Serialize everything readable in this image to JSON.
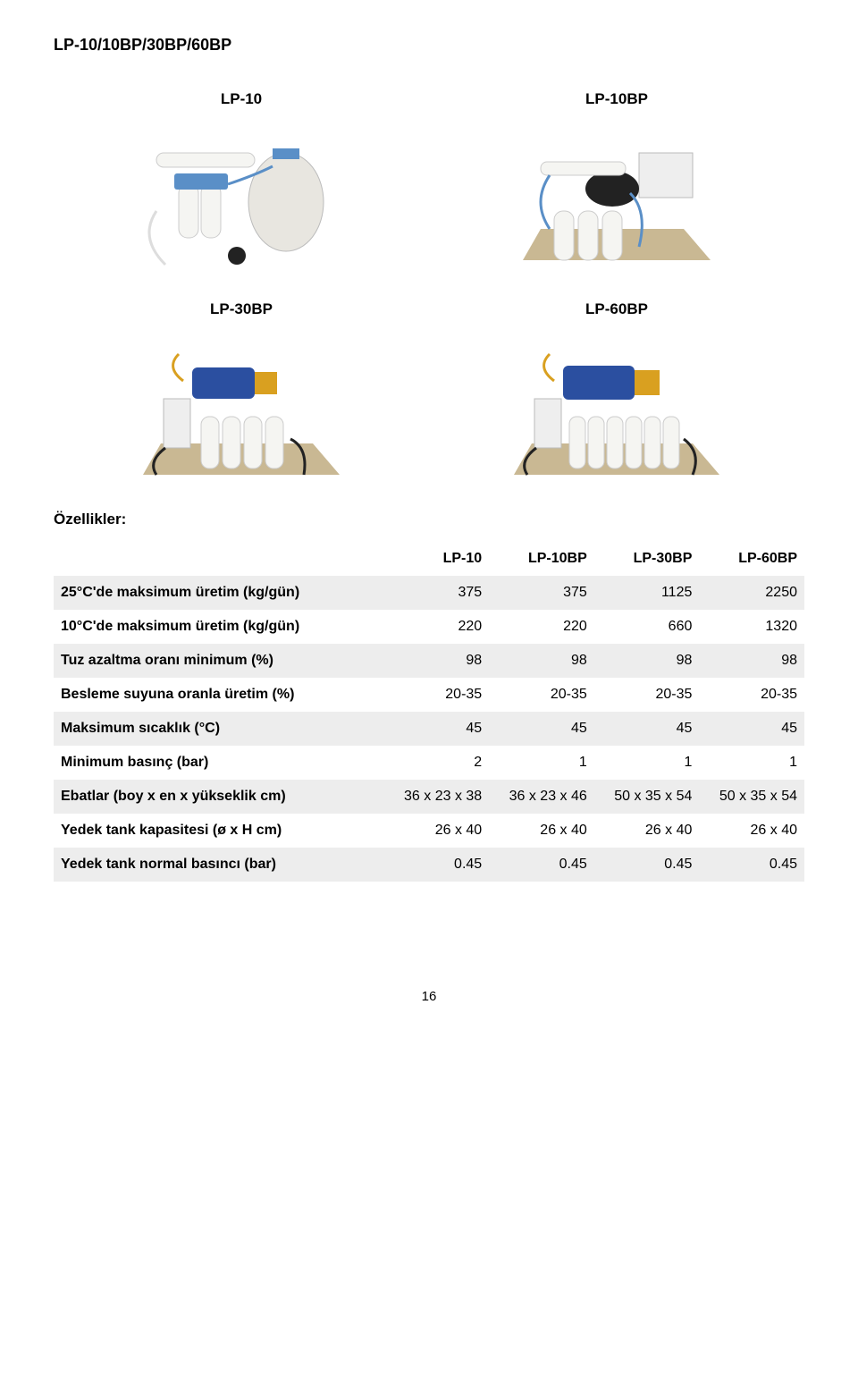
{
  "page_title": "LP-10/10BP/30BP/60BP",
  "products": {
    "row1": [
      {
        "label": "LP-10"
      },
      {
        "label": "LP-10BP"
      }
    ],
    "row2": [
      {
        "label": "LP-30BP"
      },
      {
        "label": "LP-60BP"
      }
    ]
  },
  "section_label": "Özellikler:",
  "table": {
    "columns": [
      "",
      "LP-10",
      "LP-10BP",
      "LP-30BP",
      "LP-60BP"
    ],
    "rows": [
      {
        "label": "25°C'de maksimum üretim (kg/gün)",
        "values": [
          "375",
          "375",
          "1125",
          "2250"
        ],
        "shaded": true
      },
      {
        "label": "10°C'de maksimum üretim (kg/gün)",
        "values": [
          "220",
          "220",
          "660",
          "1320"
        ],
        "shaded": false
      },
      {
        "label": "Tuz azaltma oranı minimum (%)",
        "values": [
          "98",
          "98",
          "98",
          "98"
        ],
        "shaded": true
      },
      {
        "label": "Besleme suyuna oranla üretim (%)",
        "values": [
          "20-35",
          "20-35",
          "20-35",
          "20-35"
        ],
        "shaded": false
      },
      {
        "label": "Maksimum sıcaklık (°C)",
        "values": [
          "45",
          "45",
          "45",
          "45"
        ],
        "shaded": true
      },
      {
        "label": "Minimum basınç (bar)",
        "values": [
          "2",
          "1",
          "1",
          "1"
        ],
        "shaded": false
      },
      {
        "label": "Ebatlar (boy x en x yükseklik cm)",
        "values": [
          "36 x 23 x 38",
          "36 x 23 x 46",
          "50 x 35 x 54",
          "50 x 35 x 54"
        ],
        "shaded": true
      },
      {
        "label": "Yedek tank kapasitesi (ø x H cm)",
        "values": [
          "26 x 40",
          "26 x 40",
          "26 x 40",
          "26 x 40"
        ],
        "shaded": false
      },
      {
        "label": "Yedek tank normal basıncı (bar)",
        "values": [
          "0.45",
          "0.45",
          "0.45",
          "0.45"
        ],
        "shaded": true
      }
    ]
  },
  "page_number": "16",
  "colors": {
    "shaded_bg": "#ededed",
    "text": "#000000",
    "filter_white": "#f5f5f2",
    "filter_blue": "#5a8fc7",
    "motor_blue": "#2b4fa0",
    "motor_yellow": "#d9a020",
    "tank": "#e8e6e0",
    "panel": "#c9b893",
    "dark": "#222222"
  }
}
